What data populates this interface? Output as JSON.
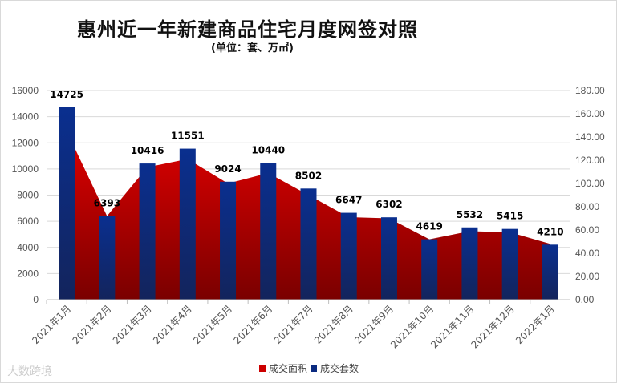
{
  "title": "惠州近一年新建商品住宅月度网签对照",
  "subtitle": "(单位：套、万㎡)",
  "watermark": "大数跨境",
  "chart_data": {
    "type": "bar+area",
    "categories": [
      "2021年1月",
      "2021年2月",
      "2021年3月",
      "2021年4月",
      "2021年5月",
      "2021年6月",
      "2021年7月",
      "2021年8月",
      "2021年9月",
      "2021年10月",
      "2021年11月",
      "2021年12月",
      "2022年1月"
    ],
    "series": [
      {
        "name": "成交面积",
        "type": "area",
        "axis": "right",
        "color": "#cc0000",
        "values": [
          145,
          72,
          114,
          121,
          100,
          109,
          90,
          71,
          70,
          52,
          59,
          58,
          48
        ]
      },
      {
        "name": "成交套数",
        "type": "bar",
        "axis": "left",
        "color": "#0a2a80",
        "values": [
          14725,
          6393,
          10416,
          11551,
          9024,
          10440,
          8502,
          6647,
          6302,
          4619,
          5532,
          5415,
          4210
        ],
        "data_labels": true
      }
    ],
    "y_left": {
      "min": 0,
      "max": 16000,
      "ticks": [
        "0",
        "2000",
        "4000",
        "6000",
        "8000",
        "10000",
        "12000",
        "14000",
        "16000"
      ]
    },
    "y_right": {
      "min": 0,
      "max": 180,
      "ticks": [
        "0.00",
        "20.00",
        "40.00",
        "60.00",
        "80.00",
        "100.00",
        "120.00",
        "140.00",
        "160.00",
        "180.00"
      ]
    },
    "grid": true,
    "legend": "bottom"
  }
}
